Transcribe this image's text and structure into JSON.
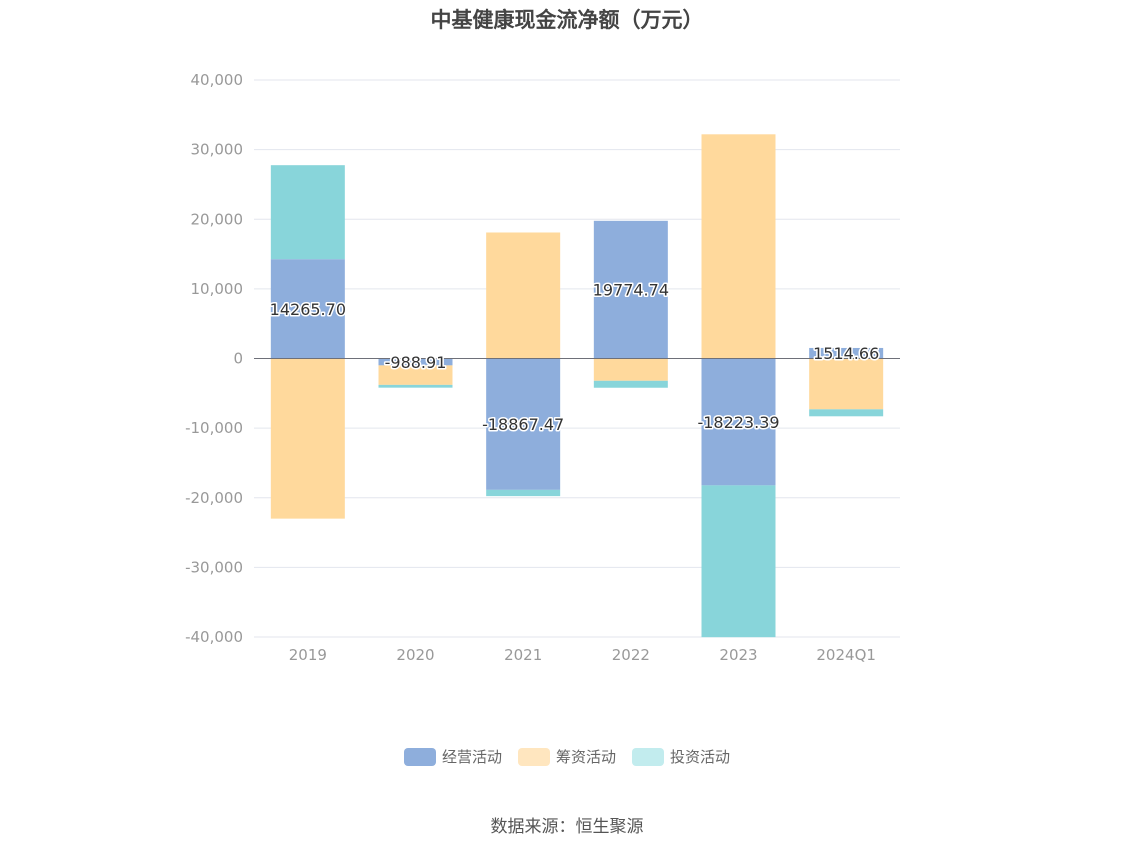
{
  "chart_data": {
    "type": "bar",
    "stacked": true,
    "title": "中基健康现金流净额（万元）",
    "categories": [
      "2019",
      "2020",
      "2021",
      "2022",
      "2023",
      "2024Q1"
    ],
    "series": [
      {
        "name": "经营活动",
        "color": "#8eaedc",
        "values": [
          14265.7,
          -988.91,
          -18867.47,
          19774.74,
          -18223.39,
          1514.66
        ]
      },
      {
        "name": "筹资活动",
        "color": "#ffd99c",
        "values": [
          -23000,
          -2800,
          18100,
          -3200,
          32200,
          -7300
        ]
      },
      {
        "name": "投资活动",
        "color": "#88d5da",
        "values": [
          13500,
          -400,
          -900,
          -1000,
          -21800,
          -1000
        ]
      }
    ],
    "data_labels": [
      "14265.70",
      "-988.91",
      "-18867.47",
      "19774.74",
      "-18223.39",
      "1514.66"
    ],
    "ylim": [
      -40000,
      40000
    ],
    "yticks": [
      {
        "value": 40000,
        "label": "40,000"
      },
      {
        "value": 30000,
        "label": "30,000"
      },
      {
        "value": 20000,
        "label": "20,000"
      },
      {
        "value": 10000,
        "label": "10,000"
      },
      {
        "value": 0,
        "label": "0"
      },
      {
        "value": -10000,
        "label": "-10,000"
      },
      {
        "value": -20000,
        "label": "-20,000"
      },
      {
        "value": -30000,
        "label": "-30,000"
      },
      {
        "value": -40000,
        "label": "-40,000"
      }
    ],
    "grid": true,
    "legend_position": "bottom",
    "legend_swatch_colors": [
      "#8eaedc",
      "#ffe6bf",
      "#c2ecee"
    ]
  },
  "source": "数据来源：恒生聚源"
}
